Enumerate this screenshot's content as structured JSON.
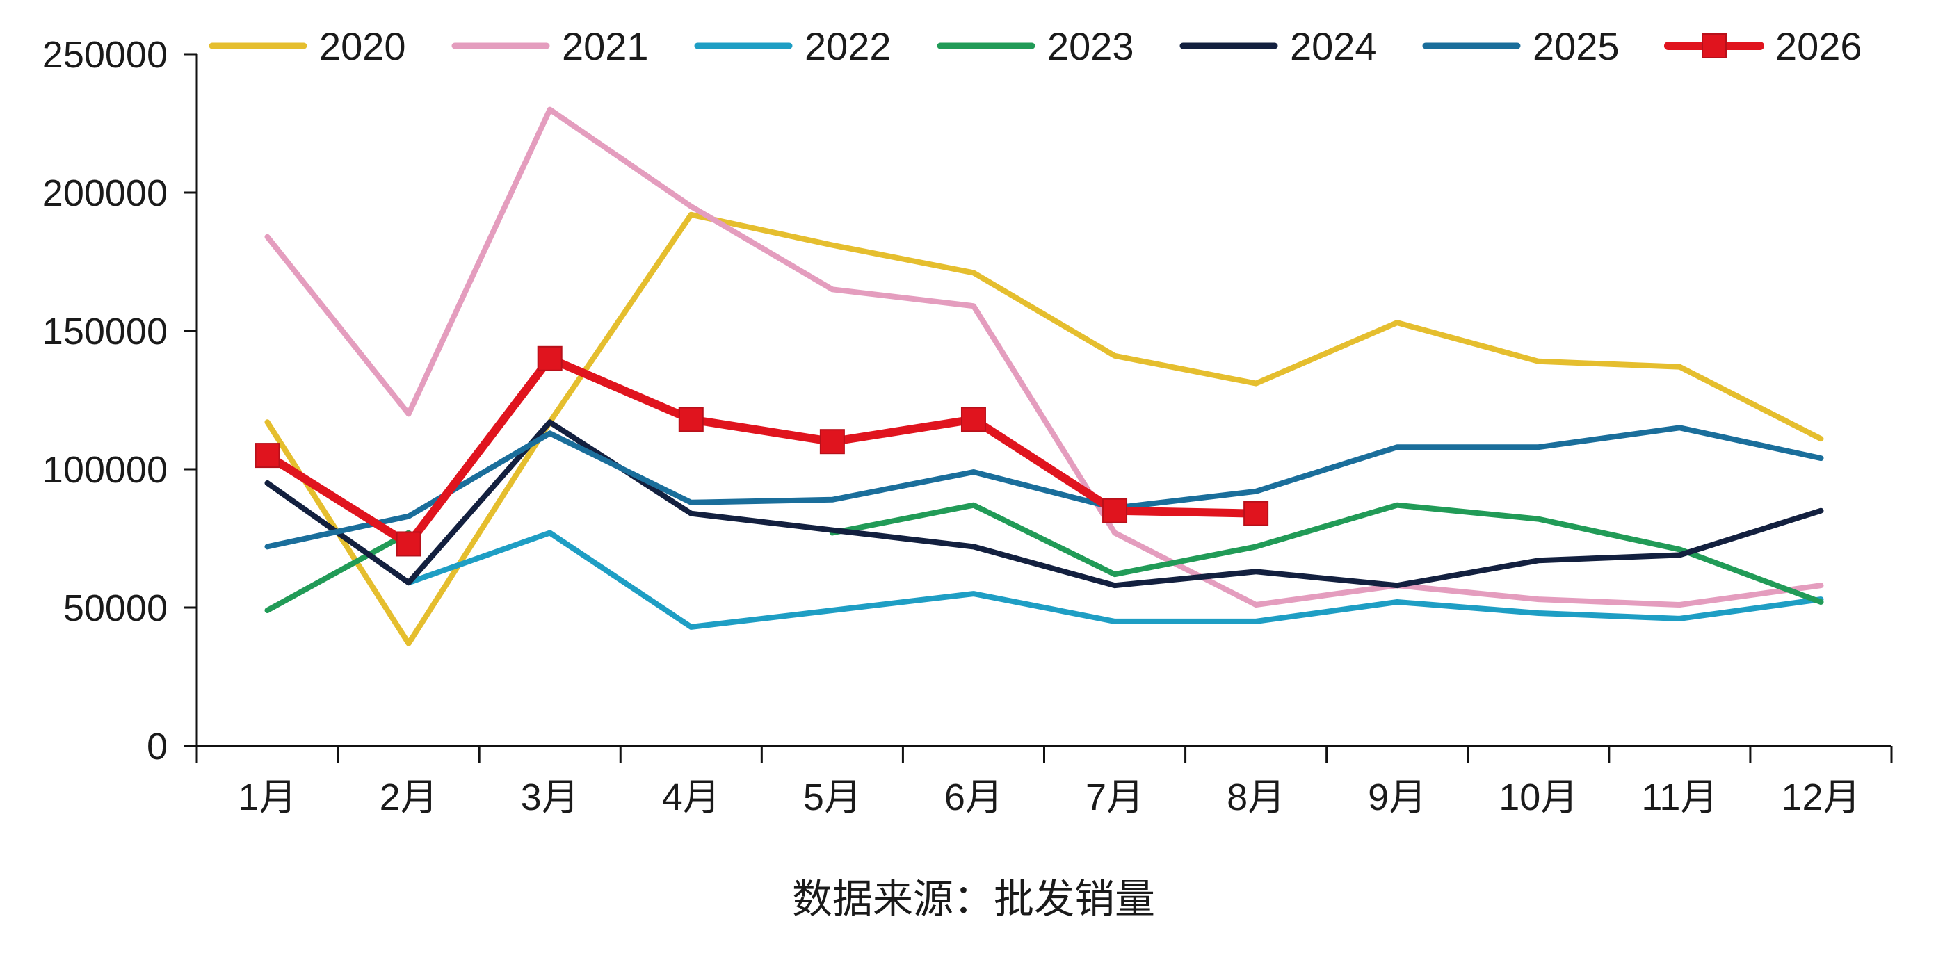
{
  "chart_data": {
    "type": "line",
    "title": "",
    "xlabel": "数据来源：批发销量",
    "ylabel": "",
    "categories": [
      "1月",
      "2月",
      "3月",
      "4月",
      "5月",
      "6月",
      "7月",
      "8月",
      "9月",
      "10月",
      "11月",
      "12月"
    ],
    "ylim": [
      0,
      250000
    ],
    "yticks": [
      0,
      50000,
      100000,
      150000,
      200000,
      250000
    ],
    "grid": false,
    "legend": "top",
    "series": [
      {
        "name": "2020",
        "color": "#E5BE2E",
        "values": [
          117000,
          37000,
          117000,
          192000,
          181000,
          171000,
          141000,
          131000,
          153000,
          139000,
          137000,
          111000
        ]
      },
      {
        "name": "2021",
        "color": "#E49DBE",
        "values": [
          184000,
          120000,
          230000,
          195000,
          165000,
          159000,
          77000,
          51000,
          58000,
          53000,
          51000,
          58000
        ]
      },
      {
        "name": "2022",
        "color": "#1E9EC4",
        "values": [
          null,
          59000,
          77000,
          43000,
          49000,
          55000,
          45000,
          45000,
          52000,
          48000,
          46000,
          53000
        ]
      },
      {
        "name": "2023",
        "color": "#219B57",
        "values": [
          49000,
          77000,
          null,
          null,
          77000,
          87000,
          62000,
          72000,
          87000,
          82000,
          71000,
          52000
        ]
      },
      {
        "name": "2024",
        "color": "#13203F",
        "values": [
          95000,
          59000,
          117000,
          84000,
          78000,
          72000,
          58000,
          63000,
          58000,
          67000,
          69000,
          85000
        ]
      },
      {
        "name": "2025",
        "color": "#1A6E9B",
        "values": [
          72000,
          83000,
          113000,
          88000,
          89000,
          99000,
          86000,
          92000,
          108000,
          108000,
          115000,
          104000
        ]
      },
      {
        "name": "2026",
        "color": "#E0141E",
        "values": [
          105000,
          73000,
          140000,
          118000,
          110000,
          118000,
          85000,
          84000,
          null,
          null,
          null,
          null
        ],
        "marker": "square"
      }
    ]
  }
}
